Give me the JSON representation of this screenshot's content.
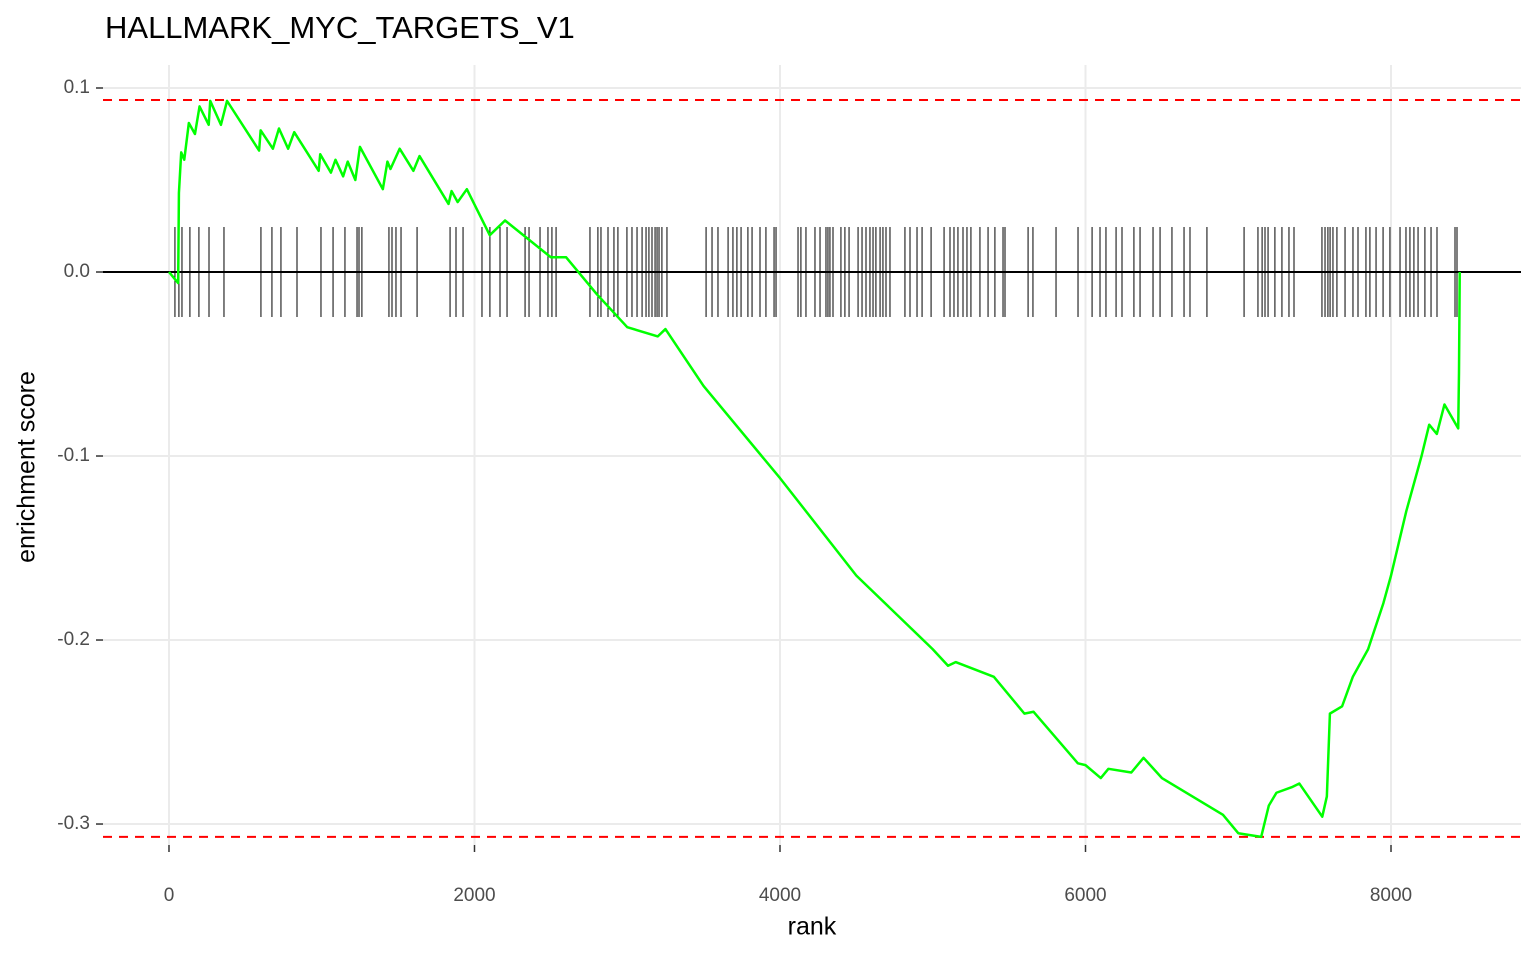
{
  "chart_data": {
    "type": "line",
    "title": "HALLMARK_MYC_TARGETS_V1",
    "x_label": "rank",
    "y_label": "enrichment score",
    "x": [
      0,
      60,
      65,
      80,
      100,
      130,
      170,
      200,
      260,
      270,
      340,
      380,
      590,
      600,
      680,
      720,
      780,
      820,
      980,
      990,
      1060,
      1090,
      1140,
      1170,
      1220,
      1250,
      1400,
      1430,
      1450,
      1510,
      1600,
      1640,
      1830,
      1850,
      1890,
      1950,
      2100,
      2200,
      2500,
      2600,
      2800,
      3000,
      3200,
      3250,
      3500,
      4000,
      4500,
      5000,
      5100,
      5150,
      5400,
      5600,
      5660,
      5950,
      6000,
      6100,
      6150,
      6300,
      6380,
      6500,
      6700,
      6900,
      7000,
      7150,
      7200,
      7250,
      7350,
      7400,
      7550,
      7580,
      7600,
      7680,
      7750,
      7850,
      7950,
      8000,
      8100,
      8200,
      8250,
      8300,
      8350,
      8440,
      8445,
      8450
    ],
    "series": [
      {
        "color": "#00ff00",
        "values": [
          0,
          -0.006,
          0.043,
          0.065,
          0.061,
          0.081,
          0.075,
          0.09,
          0.08,
          0.093,
          0.08,
          0.093,
          0.066,
          0.077,
          0.067,
          0.078,
          0.067,
          0.076,
          0.055,
          0.064,
          0.054,
          0.061,
          0.052,
          0.06,
          0.05,
          0.068,
          0.045,
          0.06,
          0.056,
          0.067,
          0.055,
          0.063,
          0.037,
          0.044,
          0.038,
          0.045,
          0.02,
          0.028,
          0.008,
          0.008,
          -0.012,
          -0.03,
          -0.035,
          -0.031,
          -0.062,
          -0.112,
          -0.165,
          -0.205,
          -0.214,
          -0.212,
          -0.22,
          -0.24,
          -0.239,
          -0.267,
          -0.268,
          -0.275,
          -0.27,
          -0.272,
          -0.264,
          -0.275,
          -0.285,
          -0.295,
          -0.305,
          -0.307,
          -0.29,
          -0.283,
          -0.28,
          -0.278,
          -0.296,
          -0.285,
          -0.24,
          -0.236,
          -0.22,
          -0.205,
          -0.18,
          -0.165,
          -0.13,
          -0.1,
          -0.083,
          -0.088,
          -0.072,
          -0.085,
          -0.055,
          0
        ]
      }
    ],
    "hits": [
      39,
      65,
      85,
      137,
      196,
      262,
      360,
      602,
      674,
      733,
      838,
      995,
      1074,
      1152,
      1231,
      1244,
      1263,
      1440,
      1460,
      1486,
      1519,
      1624,
      1840,
      1879,
      1925,
      2049,
      2101,
      2167,
      2213,
      2331,
      2357,
      2429,
      2481,
      2507,
      2534,
      2756,
      2808,
      2828,
      2874,
      2913,
      2939,
      2998,
      3031,
      3064,
      3097,
      3123,
      3142,
      3162,
      3182,
      3195,
      3208,
      3227,
      3260,
      3516,
      3555,
      3594,
      3660,
      3692,
      3718,
      3745,
      3790,
      3817,
      3869,
      3908,
      3961,
      3974,
      4118,
      4137,
      4170,
      4229,
      4262,
      4301,
      4314,
      4327,
      4347,
      4399,
      4425,
      4452,
      4511,
      4537,
      4563,
      4589,
      4609,
      4628,
      4655,
      4674,
      4694,
      4720,
      4818,
      4851,
      4897,
      4930,
      4989,
      5074,
      5113,
      5139,
      5165,
      5198,
      5224,
      5250,
      5309,
      5362,
      5407,
      5460,
      5473,
      5624,
      5656,
      5807,
      5951,
      6043,
      6095,
      6134,
      6200,
      6239,
      6317,
      6357,
      6442,
      6488,
      6566,
      6645,
      6684,
      6795,
      7038,
      7129,
      7156,
      7175,
      7195,
      7240,
      7286,
      7332,
      7365,
      7548,
      7568,
      7587,
      7601,
      7620,
      7646,
      7699,
      7751,
      7784,
      7836,
      7862,
      7902,
      7948,
      7993,
      8059,
      8098,
      8124,
      8150,
      8177,
      8222,
      8262,
      8301,
      8419,
      8432
    ],
    "hits_color": "#000000",
    "hlines": [
      {
        "value": 0.0935,
        "color": "#ff0000",
        "dashed": true
      },
      {
        "value": -0.307,
        "color": "#ff0000",
        "dashed": true
      },
      {
        "value": 0,
        "color": "#000000",
        "dashed": false
      }
    ],
    "xlim": [
      -432,
      8851
    ],
    "xticks": [
      0,
      2000,
      4000,
      6000,
      8000
    ],
    "ylim": [
      -0.3114,
      0.1125
    ],
    "yticks": [
      0.1,
      {
        "value": 0,
        "label": "0.0"
      },
      -0.1,
      -0.2,
      -0.3
    ],
    "grid": true
  }
}
